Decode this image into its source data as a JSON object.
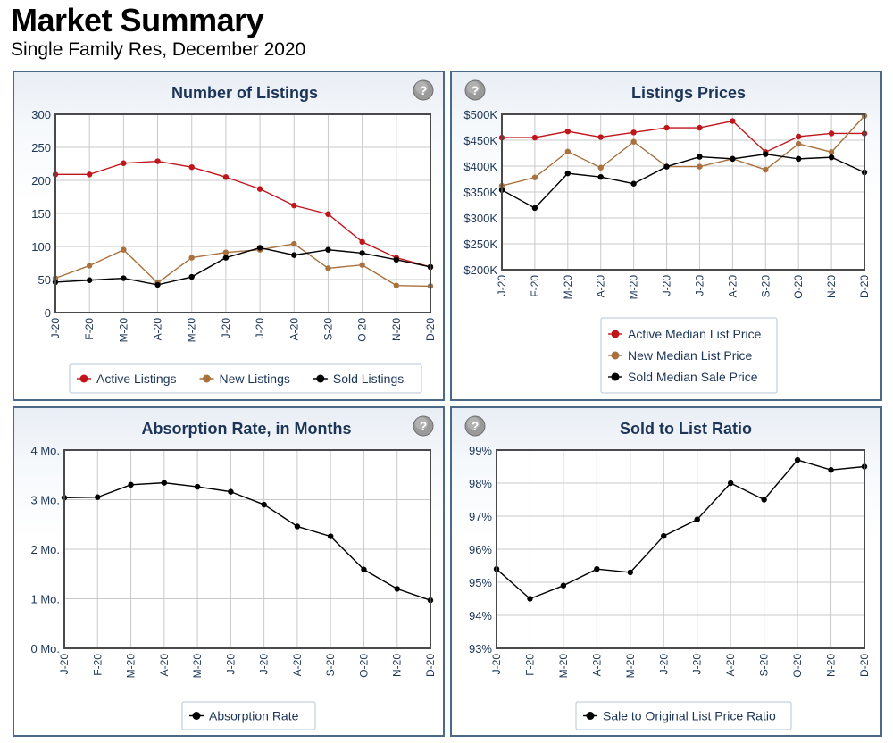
{
  "header": {
    "title": "Market Summary",
    "subtitle": "Single Family Res, December 2020"
  },
  "icons": {
    "help": "help-question-icon"
  },
  "colors": {
    "active": "#c0151b",
    "new": "#a8713d",
    "sold": "#000000",
    "panel_border": "#4a6a88",
    "title_text": "#1c3557"
  },
  "chart_data": [
    {
      "type": "line",
      "title": "Number of Listings",
      "categories": [
        "J-20",
        "F-20",
        "M-20",
        "A-20",
        "M-20",
        "J-20",
        "J-20",
        "A-20",
        "S-20",
        "O-20",
        "N-20",
        "D-20"
      ],
      "ylim": [
        0,
        300
      ],
      "yticks": [
        0,
        50,
        100,
        150,
        200,
        250,
        300
      ],
      "ytick_labels": [
        "0",
        "50",
        "100",
        "150",
        "200",
        "250",
        "300"
      ],
      "grid": true,
      "legend": "bottom",
      "series": [
        {
          "name": "Active Listings",
          "color": "#c0151b",
          "values": [
            209,
            209,
            226,
            229,
            220,
            205,
            187,
            162,
            149,
            107,
            83,
            69
          ]
        },
        {
          "name": "New Listings",
          "color": "#a8713d",
          "values": [
            52,
            71,
            95,
            45,
            83,
            91,
            95,
            104,
            67,
            72,
            41,
            40
          ]
        },
        {
          "name": "Sold Listings",
          "color": "#000000",
          "values": [
            46,
            49,
            52,
            42,
            54,
            83,
            98,
            87,
            95,
            90,
            80,
            69
          ]
        }
      ]
    },
    {
      "type": "line",
      "title": "Listings Prices",
      "categories": [
        "J-20",
        "F-20",
        "M-20",
        "A-20",
        "M-20",
        "J-20",
        "J-20",
        "A-20",
        "S-20",
        "O-20",
        "N-20",
        "D-20"
      ],
      "ylim": [
        200000,
        500000
      ],
      "yticks": [
        200000,
        250000,
        300000,
        350000,
        400000,
        450000,
        500000
      ],
      "ytick_labels": [
        "$200K",
        "$250K",
        "$300K",
        "$350K",
        "$400K",
        "$450K",
        "$500K"
      ],
      "grid": true,
      "legend": "bottom",
      "series": [
        {
          "name": "Active Median List Price",
          "color": "#c0151b",
          "values": [
            455000,
            455000,
            467000,
            456000,
            465000,
            474000,
            474000,
            487000,
            427000,
            457000,
            463000,
            463000
          ]
        },
        {
          "name": "New Median List Price",
          "color": "#a8713d",
          "values": [
            362000,
            378000,
            428000,
            397000,
            447000,
            399000,
            399000,
            414000,
            393000,
            443000,
            427000,
            497000
          ]
        },
        {
          "name": "Sold Median Sale Price",
          "color": "#000000",
          "values": [
            354000,
            319000,
            386000,
            379000,
            366000,
            399000,
            418000,
            414000,
            423000,
            414000,
            417000,
            388000
          ]
        }
      ]
    },
    {
      "type": "line",
      "title": "Absorption Rate, in Months",
      "categories": [
        "J-20",
        "F-20",
        "M-20",
        "A-20",
        "M-20",
        "J-20",
        "J-20",
        "A-20",
        "S-20",
        "O-20",
        "N-20",
        "D-20"
      ],
      "ylim": [
        0,
        4
      ],
      "yticks": [
        0,
        1,
        2,
        3,
        4
      ],
      "ytick_labels": [
        "0 Mo.",
        "1 Mo.",
        "2 Mo.",
        "3 Mo.",
        "4 Mo."
      ],
      "grid": true,
      "legend": "bottom",
      "series": [
        {
          "name": "Absorption Rate",
          "color": "#000000",
          "values": [
            3.04,
            3.05,
            3.3,
            3.34,
            3.26,
            3.16,
            2.9,
            2.46,
            2.26,
            1.59,
            1.2,
            0.97
          ]
        }
      ]
    },
    {
      "type": "line",
      "title": "Sold to List Ratio",
      "categories": [
        "J-20",
        "F-20",
        "M-20",
        "A-20",
        "M-20",
        "J-20",
        "J-20",
        "A-20",
        "S-20",
        "O-20",
        "N-20",
        "D-20"
      ],
      "ylim": [
        93,
        99
      ],
      "yticks": [
        93,
        94,
        95,
        96,
        97,
        98,
        99
      ],
      "ytick_labels": [
        "93%",
        "94%",
        "95%",
        "96%",
        "97%",
        "98%",
        "99%"
      ],
      "grid": true,
      "legend": "bottom",
      "series": [
        {
          "name": "Sale to Original List Price Ratio",
          "color": "#000000",
          "values": [
            95.4,
            94.5,
            94.9,
            95.4,
            95.3,
            96.4,
            96.9,
            98.0,
            97.5,
            98.7,
            98.4,
            98.5
          ]
        }
      ]
    }
  ]
}
